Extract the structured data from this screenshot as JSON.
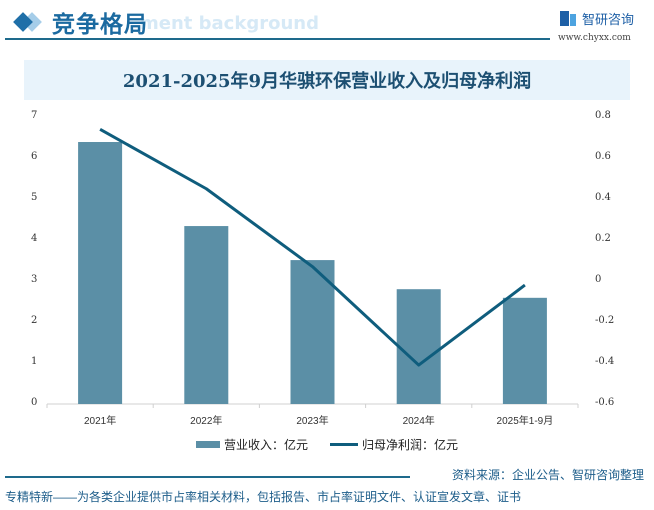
{
  "header": {
    "section_title": "竞争格局",
    "ghost_text": "ment background",
    "logo_text": "智研咨询",
    "logo_url": "www.chyxx.com"
  },
  "chart_data": {
    "type": "bar+line",
    "title": "2021-2025年9月华骐环保营业收入及归母净利润",
    "categories": [
      "2021年",
      "2022年",
      "2023年",
      "2024年",
      "2025年1-9月"
    ],
    "series": [
      {
        "name": "营业收入：亿元",
        "type": "bar",
        "axis": "left",
        "color": "#5b8fa6",
        "values": [
          6.39,
          4.34,
          3.51,
          2.8,
          2.59
        ]
      },
      {
        "name": "归母净利润：亿元",
        "type": "line",
        "axis": "right",
        "color": "#0f5d7d",
        "values": [
          0.74,
          0.45,
          0.07,
          -0.41,
          -0.02
        ]
      }
    ],
    "left_axis": {
      "ticks": [
        "0",
        "1",
        "2",
        "3",
        "4",
        "5",
        "6",
        "7"
      ],
      "ylim": [
        0,
        7
      ]
    },
    "right_axis": {
      "ticks": [
        "0.8",
        "0.6",
        "0.4",
        "0.2",
        "0",
        "-0.2",
        "-0.4",
        "-0.6"
      ],
      "ylim": [
        -0.6,
        0.8
      ]
    },
    "grid": false,
    "legend_position": "bottom"
  },
  "legend": {
    "bar_label": "营业收入：亿元",
    "line_label": "归母净利润：亿元"
  },
  "source": "资料来源：企业公告、智研咨询整理",
  "footer": "专精特新——为各类企业提供市占率相关材料，包括报告、市占率证明文件、认证宣发文章、证书"
}
